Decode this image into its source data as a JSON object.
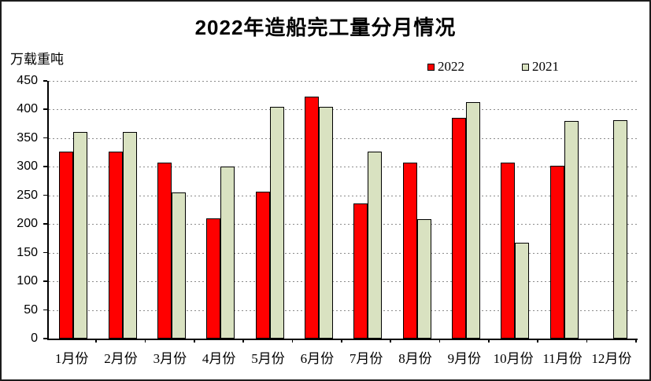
{
  "chart_data": {
    "type": "bar",
    "title": "2022年造船完工量分月情况",
    "ylabel_unit": "万载重吨",
    "ylim": [
      0,
      450
    ],
    "yticks": [
      0,
      50,
      100,
      150,
      200,
      250,
      300,
      350,
      400,
      450
    ],
    "categories": [
      "1月份",
      "2月份",
      "3月份",
      "4月份",
      "5月份",
      "6月份",
      "7月份",
      "8月份",
      "9月份",
      "10月份",
      "11月份",
      "12月份"
    ],
    "series": [
      {
        "name": "2022",
        "color": "#ff0000",
        "values": [
          327,
          327,
          308,
          210,
          256,
          422,
          236,
          307,
          385,
          307,
          302,
          null
        ]
      },
      {
        "name": "2021",
        "color": "#d9e2c1",
        "values": [
          361,
          361,
          255,
          301,
          405,
          405,
          326,
          208,
          413,
          167,
          380,
          381
        ]
      }
    ],
    "grid": "horizontal-dotted",
    "legend_position": "top-right",
    "bar_border_color": "#000000",
    "gridline_color": "#8c8c8c",
    "axis_color": "#000000"
  }
}
